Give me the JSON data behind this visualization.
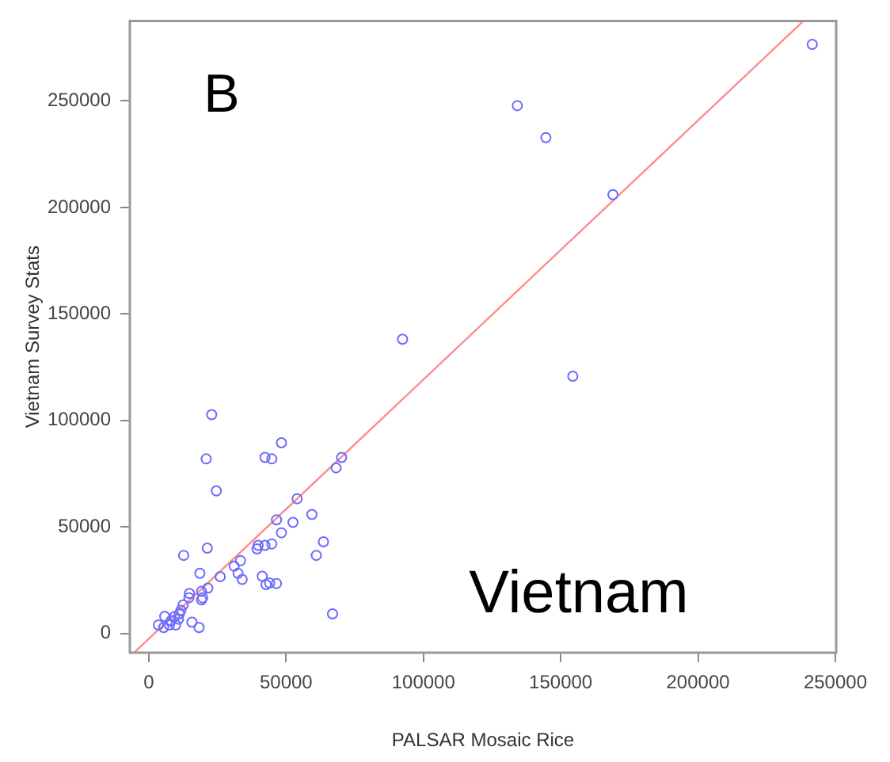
{
  "chart_data": {
    "type": "scatter",
    "xlabel": "PALSAR Mosaic Rice",
    "ylabel": "Vietnam Survey Stats",
    "annotations": [
      "B",
      "Vietnam"
    ],
    "xlim": [
      -6900,
      250300
    ],
    "ylim": [
      -9100,
      287600
    ],
    "xticks": [
      0,
      50000,
      100000,
      150000,
      200000,
      250000
    ],
    "yticks": [
      0,
      50000,
      100000,
      150000,
      200000,
      250000
    ],
    "grid": false,
    "legend": false,
    "marker": "circle",
    "series": [
      {
        "color": "#6a6aff",
        "x": [
          22900,
          48300,
          20900,
          42300,
          44800,
          70200,
          68200,
          24600,
          54000,
          46500,
          52500,
          59400,
          48300,
          63600,
          61000,
          12700,
          21300,
          39800,
          42300,
          44800,
          39400,
          33400,
          31100,
          32500,
          34000,
          26000,
          18600,
          41300,
          42700,
          44000,
          46500,
          21500,
          19200,
          19200,
          19600,
          14800,
          14600,
          12500,
          11700,
          11100,
          9400,
          10800,
          5800,
          8100,
          9800,
          3500,
          5400,
          7500,
          15700,
          18300,
          66900,
          92400,
          134200,
          144600,
          169000,
          154400,
          241600
        ],
        "values": [
          102700,
          89500,
          81900,
          82600,
          81900,
          82600,
          77700,
          66900,
          63200,
          53300,
          52100,
          55800,
          47200,
          43000,
          36600,
          36600,
          40000,
          41300,
          41300,
          42000,
          39600,
          34100,
          31500,
          28200,
          25300,
          26600,
          28200,
          26800,
          22900,
          23600,
          23400,
          21200,
          19700,
          15700,
          16700,
          18700,
          16700,
          13300,
          10800,
          9100,
          7900,
          6600,
          7900,
          5900,
          3900,
          3900,
          2700,
          3900,
          5200,
          2700,
          9100,
          138100,
          247800,
          232800,
          206000,
          120700,
          276600
        ]
      },
      {
        "type": "line",
        "color": "#ff8c8c",
        "marker": "none",
        "x": [
          -5400,
          238400
        ],
        "values": [
          -9100,
          287600
        ]
      }
    ]
  }
}
